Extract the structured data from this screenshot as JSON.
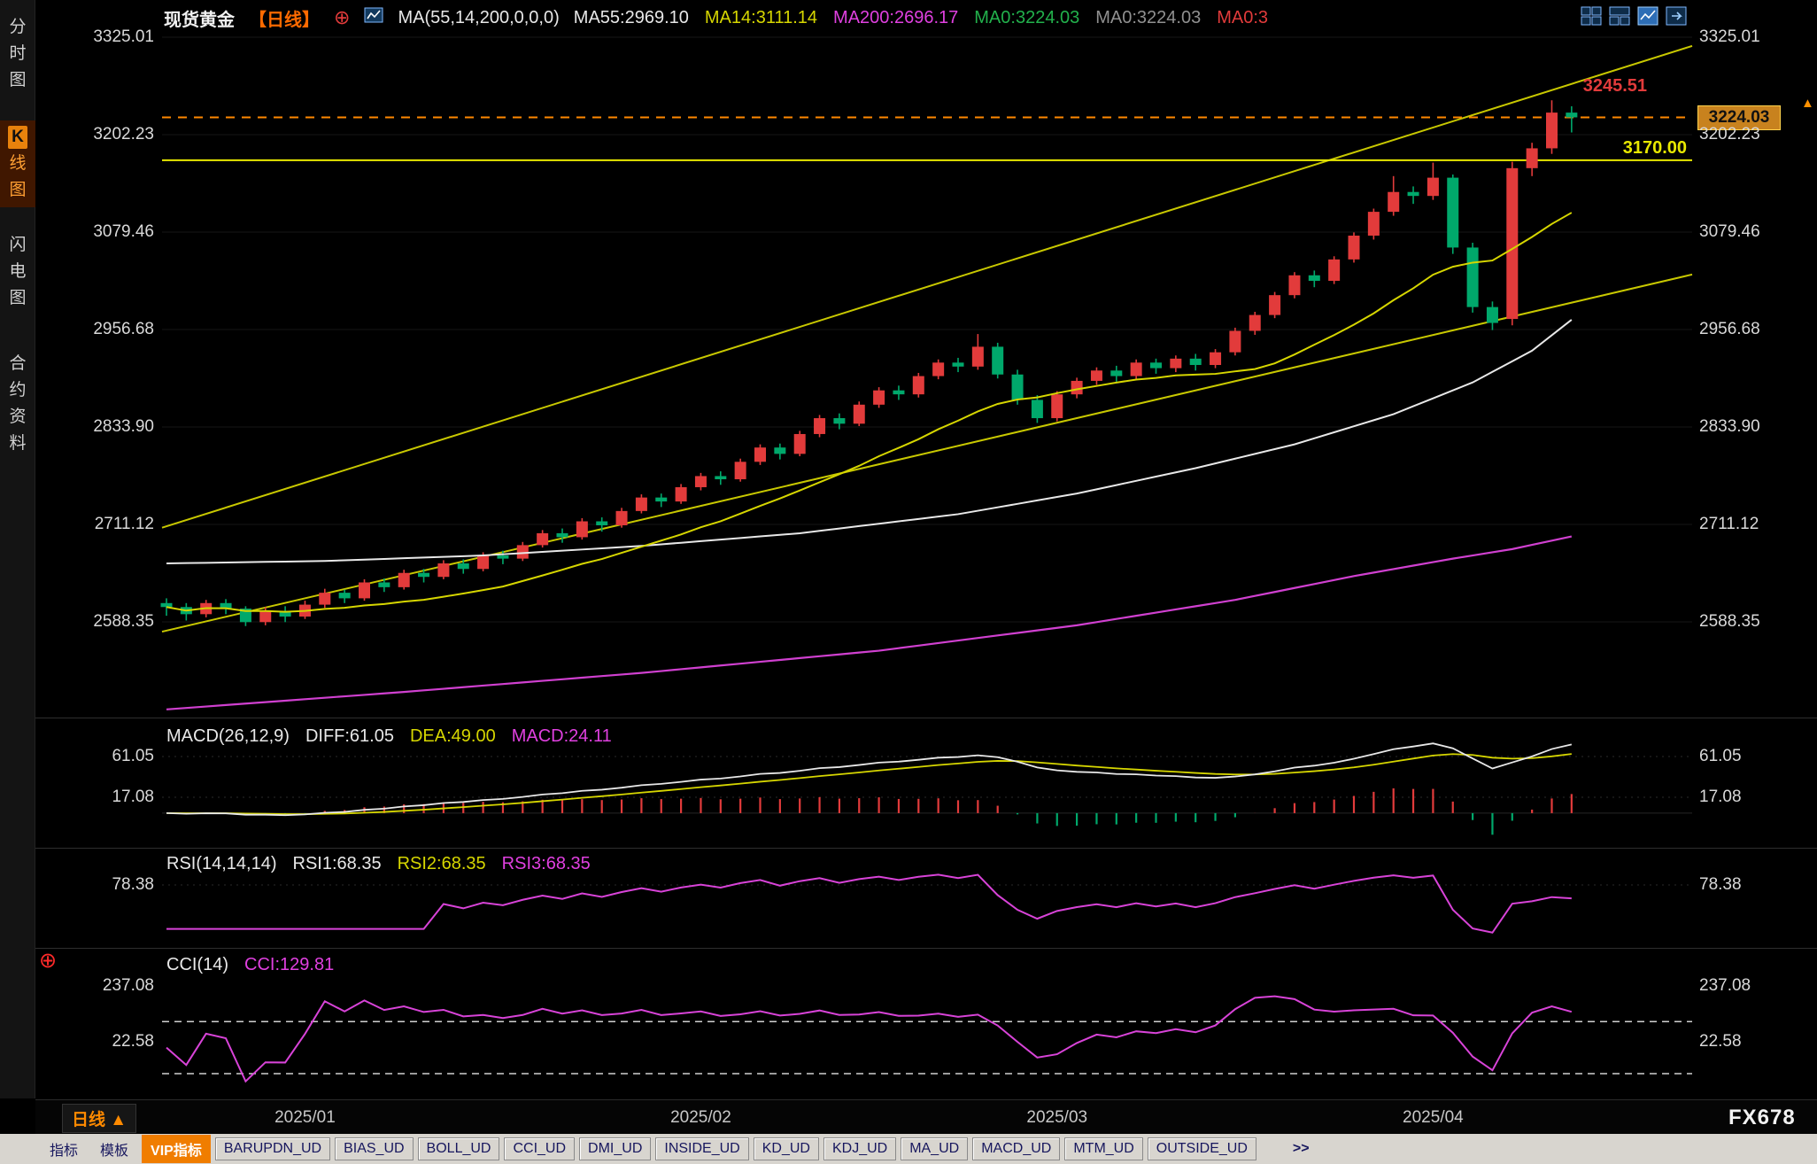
{
  "header": {
    "symbol": "现货黄金",
    "period_tag": "【日线】",
    "ma_settings_label": "MA(55,14,200,0,0,0)",
    "ma_values": [
      {
        "text": "MA55:2969.10",
        "color": "#e8e8e8"
      },
      {
        "text": "MA14:3111.14",
        "color": "#d6d600"
      },
      {
        "text": "MA200:2696.17",
        "color": "#e040e0"
      },
      {
        "text": "MA0:3224.03",
        "color": "#22b14c"
      },
      {
        "text": "MA0:3224.03",
        "color": "#909090"
      },
      {
        "text": "MA0:3",
        "color": "#e23b3b"
      }
    ],
    "toolbar_icons": [
      "layout-quad-icon",
      "layout-split-icon",
      "chart-pane-icon",
      "new-window-icon"
    ]
  },
  "sidebar": {
    "tabs": [
      {
        "label": "分时图",
        "active": false
      },
      {
        "label": "K线图",
        "active": true
      },
      {
        "label": "闪电图",
        "active": false
      },
      {
        "label": "合约资料",
        "active": false
      }
    ]
  },
  "price_tag": {
    "value": "3224.03"
  },
  "high_label": {
    "value": "3245.51"
  },
  "support_label": {
    "value": "3170.00"
  },
  "latest_arrow": "▲",
  "period_selector": {
    "label": "日线",
    "arrow": "▲"
  },
  "watermark": "FX678",
  "bottom_tabs": {
    "items": [
      {
        "label": "指标",
        "type": "plain"
      },
      {
        "label": "模板",
        "type": "plain"
      },
      {
        "label": "VIP指标",
        "type": "vip"
      },
      {
        "label": "BARUPDN_UD",
        "type": "boxed"
      },
      {
        "label": "BIAS_UD",
        "type": "boxed"
      },
      {
        "label": "BOLL_UD",
        "type": "boxed"
      },
      {
        "label": "CCI_UD",
        "type": "boxed"
      },
      {
        "label": "DMI_UD",
        "type": "boxed"
      },
      {
        "label": "INSIDE_UD",
        "type": "boxed"
      },
      {
        "label": "KD_UD",
        "type": "boxed"
      },
      {
        "label": "KDJ_UD",
        "type": "boxed"
      },
      {
        "label": "MA_UD",
        "type": "boxed"
      },
      {
        "label": "MACD_UD",
        "type": "boxed"
      },
      {
        "label": "MTM_UD",
        "type": "boxed"
      },
      {
        "label": "OUTSIDE_UD",
        "type": "boxed"
      },
      {
        "label": ">>",
        "type": "more"
      }
    ]
  },
  "chart_data": {
    "type": "candlestick",
    "title": "现货黄金 日线",
    "up_color": "#e23b3b",
    "down_color": "#00a86b",
    "y_ticks": [
      3325.01,
      3202.23,
      3079.46,
      2956.68,
      2833.9,
      2711.12,
      2588.35
    ],
    "x_labels": [
      {
        "index": 7,
        "label": "2025/01"
      },
      {
        "index": 27,
        "label": "2025/02"
      },
      {
        "index": 45,
        "label": "2025/03"
      },
      {
        "index": 64,
        "label": "2025/04"
      }
    ],
    "candles_ohlc": [
      [
        2612,
        2618,
        2596,
        2607
      ],
      [
        2607,
        2612,
        2590,
        2598
      ],
      [
        2598,
        2616,
        2594,
        2612
      ],
      [
        2612,
        2617,
        2598,
        2605
      ],
      [
        2605,
        2608,
        2583,
        2588
      ],
      [
        2588,
        2607,
        2584,
        2602
      ],
      [
        2602,
        2608,
        2588,
        2595
      ],
      [
        2595,
        2615,
        2592,
        2610
      ],
      [
        2610,
        2630,
        2606,
        2625
      ],
      [
        2625,
        2629,
        2612,
        2618
      ],
      [
        2618,
        2642,
        2615,
        2638
      ],
      [
        2638,
        2643,
        2626,
        2632
      ],
      [
        2632,
        2654,
        2629,
        2650
      ],
      [
        2650,
        2655,
        2638,
        2645
      ],
      [
        2645,
        2666,
        2642,
        2662
      ],
      [
        2662,
        2667,
        2649,
        2655
      ],
      [
        2655,
        2676,
        2652,
        2672
      ],
      [
        2672,
        2678,
        2661,
        2668
      ],
      [
        2668,
        2689,
        2665,
        2685
      ],
      [
        2685,
        2704,
        2682,
        2700
      ],
      [
        2700,
        2706,
        2688,
        2695
      ],
      [
        2695,
        2719,
        2692,
        2715
      ],
      [
        2715,
        2720,
        2702,
        2710
      ],
      [
        2710,
        2732,
        2707,
        2728
      ],
      [
        2728,
        2749,
        2725,
        2745
      ],
      [
        2745,
        2750,
        2733,
        2740
      ],
      [
        2740,
        2762,
        2737,
        2758
      ],
      [
        2758,
        2776,
        2754,
        2772
      ],
      [
        2772,
        2778,
        2761,
        2768
      ],
      [
        2768,
        2794,
        2765,
        2790
      ],
      [
        2790,
        2812,
        2786,
        2808
      ],
      [
        2808,
        2813,
        2793,
        2800
      ],
      [
        2800,
        2829,
        2797,
        2825
      ],
      [
        2825,
        2849,
        2821,
        2845
      ],
      [
        2845,
        2851,
        2831,
        2838
      ],
      [
        2838,
        2866,
        2835,
        2862
      ],
      [
        2862,
        2884,
        2858,
        2880
      ],
      [
        2880,
        2886,
        2868,
        2875
      ],
      [
        2875,
        2902,
        2871,
        2898
      ],
      [
        2898,
        2919,
        2894,
        2915
      ],
      [
        2915,
        2921,
        2903,
        2910
      ],
      [
        2910,
        2951,
        2906,
        2935
      ],
      [
        2935,
        2940,
        2895,
        2900
      ],
      [
        2900,
        2906,
        2862,
        2868
      ],
      [
        2868,
        2874,
        2839,
        2845
      ],
      [
        2845,
        2879,
        2841,
        2875
      ],
      [
        2875,
        2896,
        2870,
        2892
      ],
      [
        2892,
        2909,
        2887,
        2905
      ],
      [
        2905,
        2911,
        2891,
        2898
      ],
      [
        2898,
        2919,
        2894,
        2915
      ],
      [
        2915,
        2920,
        2901,
        2908
      ],
      [
        2908,
        2924,
        2903,
        2920
      ],
      [
        2920,
        2926,
        2905,
        2912
      ],
      [
        2912,
        2932,
        2908,
        2928
      ],
      [
        2928,
        2959,
        2924,
        2955
      ],
      [
        2955,
        2979,
        2950,
        2975
      ],
      [
        2975,
        3004,
        2971,
        3000
      ],
      [
        3000,
        3029,
        2996,
        3025
      ],
      [
        3025,
        3031,
        3010,
        3018
      ],
      [
        3018,
        3049,
        3014,
        3045
      ],
      [
        3045,
        3079,
        3041,
        3075
      ],
      [
        3075,
        3109,
        3070,
        3105
      ],
      [
        3105,
        3150,
        3100,
        3130
      ],
      [
        3130,
        3137,
        3115,
        3125
      ],
      [
        3125,
        3167,
        3120,
        3148
      ],
      [
        3148,
        3152,
        3052,
        3060
      ],
      [
        3060,
        3066,
        2978,
        2985
      ],
      [
        2985,
        2992,
        2956,
        2965
      ],
      [
        2970,
        3168,
        2962,
        3160
      ],
      [
        3160,
        3192,
        3150,
        3185
      ],
      [
        3185,
        3245.51,
        3178,
        3230
      ],
      [
        3230,
        3238,
        3205,
        3224.03
      ]
    ],
    "overlays": {
      "ma14": {
        "name": "MA14",
        "color": "#d6d600",
        "period": 14
      },
      "ma55": {
        "name": "MA55",
        "color": "#e8e8e8",
        "points": [
          [
            0,
            2662
          ],
          [
            8,
            2665
          ],
          [
            16,
            2672
          ],
          [
            24,
            2684
          ],
          [
            32,
            2700
          ],
          [
            40,
            2724
          ],
          [
            46,
            2750
          ],
          [
            52,
            2782
          ],
          [
            57,
            2812
          ],
          [
            62,
            2850
          ],
          [
            66,
            2890
          ],
          [
            69,
            2930
          ],
          [
            71,
            2969
          ]
        ]
      },
      "ma200": {
        "name": "MA200",
        "color": "#d040d0",
        "points": [
          [
            0,
            2478
          ],
          [
            12,
            2500
          ],
          [
            24,
            2524
          ],
          [
            36,
            2552
          ],
          [
            46,
            2584
          ],
          [
            54,
            2616
          ],
          [
            60,
            2646
          ],
          [
            65,
            2668
          ],
          [
            68,
            2680
          ],
          [
            71,
            2696
          ]
        ]
      }
    },
    "trendlines": [
      {
        "color": "#c8c800",
        "p_left": 2707,
        "p_right": 3314
      },
      {
        "color": "#c8c800",
        "p_left": 2576,
        "p_right": 3026
      }
    ],
    "h_lines": [
      {
        "price": 3170.0,
        "color": "#e8e800",
        "style": "solid"
      },
      {
        "price": 3224.03,
        "color": "#ff8800",
        "style": "dashed"
      }
    ],
    "indicators": {
      "macd": {
        "params": "MACD(26,12,9)",
        "labels": [
          {
            "text": "DIFF:61.05",
            "color": "#e8e8e8"
          },
          {
            "text": "DEA:49.00",
            "color": "#d6d600"
          },
          {
            "text": "MACD:24.11",
            "color": "#e040e0"
          }
        ],
        "y_ticks": [
          61.05,
          17.08
        ]
      },
      "rsi": {
        "params": "RSI(14,14,14)",
        "labels": [
          {
            "text": "RSI1:68.35",
            "color": "#e8e8e8"
          },
          {
            "text": "RSI2:68.35",
            "color": "#d6d600"
          },
          {
            "text": "RSI3:68.35",
            "color": "#e040e0"
          }
        ],
        "y_ticks": [
          78.38
        ]
      },
      "cci": {
        "params": "CCI(14)",
        "labels": [
          {
            "text": "CCI:129.81",
            "color": "#e040e0"
          }
        ],
        "y_ticks": [
          237.08,
          22.58
        ],
        "bands": [
          100,
          -100
        ]
      }
    }
  }
}
